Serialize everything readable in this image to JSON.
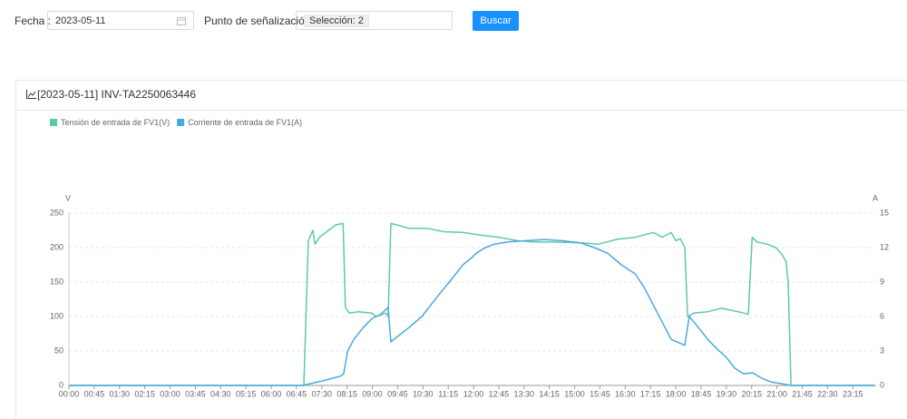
{
  "form": {
    "date_label": "Fecha :",
    "date_value": "2023-05-11",
    "point_label": "Punto de señalización :",
    "point_value": "Selección: 2",
    "button": "Buscar"
  },
  "chart_data": {
    "type": "line",
    "title": "[2023-05-11] INV-TA2250063446",
    "y_label": "V",
    "y2_label": "A",
    "xlim": [
      0,
      1435
    ],
    "xticks": [
      {
        "value": 0,
        "label": "00:00"
      },
      {
        "value": 45,
        "label": "00:45"
      },
      {
        "value": 90,
        "label": "01:30"
      },
      {
        "value": 135,
        "label": "02:15"
      },
      {
        "value": 180,
        "label": "03:00"
      },
      {
        "value": 225,
        "label": "03:45"
      },
      {
        "value": 270,
        "label": "04:30"
      },
      {
        "value": 315,
        "label": "05:15"
      },
      {
        "value": 360,
        "label": "06:00"
      },
      {
        "value": 405,
        "label": "06:45"
      },
      {
        "value": 450,
        "label": "07:30"
      },
      {
        "value": 495,
        "label": "08:15"
      },
      {
        "value": 540,
        "label": "09:00"
      },
      {
        "value": 585,
        "label": "09:45"
      },
      {
        "value": 630,
        "label": "10:30"
      },
      {
        "value": 675,
        "label": "11:15"
      },
      {
        "value": 720,
        "label": "12:00"
      },
      {
        "value": 765,
        "label": "12:45"
      },
      {
        "value": 810,
        "label": "13:30"
      },
      {
        "value": 855,
        "label": "14:15"
      },
      {
        "value": 900,
        "label": "15:00"
      },
      {
        "value": 945,
        "label": "15:45"
      },
      {
        "value": 990,
        "label": "16:30"
      },
      {
        "value": 1035,
        "label": "17:15"
      },
      {
        "value": 1080,
        "label": "18:00"
      },
      {
        "value": 1125,
        "label": "18:45"
      },
      {
        "value": 1170,
        "label": "19:30"
      },
      {
        "value": 1215,
        "label": "20:15"
      },
      {
        "value": 1260,
        "label": "21:00"
      },
      {
        "value": 1305,
        "label": "21:45"
      },
      {
        "value": 1350,
        "label": "22:30"
      },
      {
        "value": 1395,
        "label": "23:15"
      }
    ],
    "ylim": [
      0,
      250
    ],
    "yticks": [
      0,
      50,
      100,
      150,
      200,
      250
    ],
    "y2lim": [
      0,
      15
    ],
    "y2ticks": [
      0,
      3,
      6,
      9,
      12,
      15
    ],
    "grid": true,
    "series": [
      {
        "name": "Tensión de entrada de FV1(V)",
        "color": "#5ccba4",
        "x": [
          0,
          418,
          426,
          434,
          438,
          446,
          462,
          475,
          488,
          492,
          499,
          515,
          539,
          547,
          564,
          568,
          573,
          588,
          604,
          636,
          668,
          701,
          733,
          765,
          798,
          830,
          862,
          911,
          943,
          975,
          1008,
          1040,
          1056,
          1072,
          1080,
          1088,
          1096,
          1101,
          1112,
          1137,
          1161,
          1185,
          1201,
          1209,
          1216,
          1225,
          1242,
          1258,
          1269,
          1276,
          1280,
          1285,
          1435
        ],
        "values": [
          0,
          0,
          210,
          225,
          205,
          215,
          225,
          233,
          235,
          113,
          105,
          107,
          105,
          100,
          105,
          100,
          235,
          232,
          228,
          228,
          223,
          222,
          218,
          215,
          210,
          208,
          208,
          207,
          205,
          212,
          215,
          222,
          215,
          222,
          210,
          213,
          200,
          100,
          105,
          107,
          112,
          108,
          105,
          103,
          215,
          208,
          205,
          200,
          190,
          180,
          150,
          0,
          0
        ]
      },
      {
        "name": "Corriente de entrada de FV1(A)",
        "color": "#4aa8e0",
        "axis": "y2",
        "x": [
          0,
          415,
          434,
          459,
          483,
          489,
          496,
          507,
          523,
          539,
          555,
          568,
          573,
          604,
          628,
          644,
          660,
          677,
          701,
          714,
          725,
          741,
          757,
          781,
          814,
          846,
          878,
          911,
          935,
          959,
          983,
          1008,
          1024,
          1040,
          1056,
          1072,
          1096,
          1104,
          1121,
          1137,
          1153,
          1169,
          1185,
          1201,
          1217,
          1234,
          1250,
          1274,
          1285,
          1435
        ],
        "values": [
          0,
          0,
          0.2,
          0.5,
          0.8,
          1,
          3,
          4,
          5,
          5.8,
          6.2,
          6.8,
          3.8,
          5,
          6,
          7,
          8,
          9,
          10.5,
          11,
          11.5,
          12,
          12.3,
          12.5,
          12.6,
          12.7,
          12.6,
          12.4,
          12,
          11.5,
          10.5,
          9.7,
          8.5,
          7,
          5.5,
          4,
          3.5,
          6,
          5,
          4,
          3.2,
          2.5,
          1.5,
          1,
          1.1,
          0.6,
          0.3,
          0.1,
          0,
          0
        ]
      }
    ]
  }
}
